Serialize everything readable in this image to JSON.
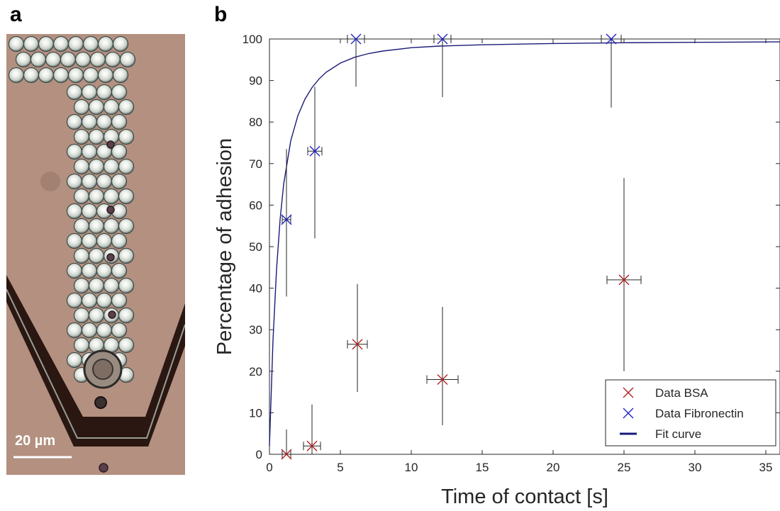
{
  "panels": {
    "a_label": "a",
    "b_label": "b"
  },
  "micrograph": {
    "scale_bar_label": "20 µm",
    "colors": {
      "background": "#b39080",
      "channel": "#2a1712",
      "bead": "#d9ded8"
    }
  },
  "chart_data": {
    "type": "scatter",
    "title": "",
    "xlabel": "Time of contact [s]",
    "ylabel": "Percentage of adhesion",
    "xlim": [
      0,
      36
    ],
    "ylim": [
      0,
      100
    ],
    "xticks": [
      0,
      5,
      10,
      15,
      20,
      25,
      30,
      35
    ],
    "yticks": [
      0,
      10,
      20,
      30,
      40,
      50,
      60,
      70,
      80,
      90,
      100
    ],
    "grid": false,
    "legend_position": "bottom-right",
    "series": [
      {
        "name": "Data BSA",
        "marker": "x",
        "color": "#b22222",
        "points": [
          {
            "x": 1.2,
            "y": 0,
            "xerr": 0.3,
            "yerr_low": 0,
            "yerr_high": 6
          },
          {
            "x": 3.0,
            "y": 2,
            "xerr": 0.6,
            "yerr_low": 2,
            "yerr_high": 10
          },
          {
            "x": 6.2,
            "y": 26.5,
            "xerr": 0.7,
            "yerr_low": 11.5,
            "yerr_high": 14.5
          },
          {
            "x": 12.2,
            "y": 18,
            "xerr": 1.1,
            "yerr_low": 11,
            "yerr_high": 17.5
          },
          {
            "x": 25.0,
            "y": 42,
            "xerr": 1.2,
            "yerr_low": 22,
            "yerr_high": 24.5
          }
        ]
      },
      {
        "name": "Data Fibronectin",
        "marker": "x",
        "color": "#2323c8",
        "points": [
          {
            "x": 1.2,
            "y": 56.5,
            "xerr": 0.3,
            "yerr_low": 18.5,
            "yerr_high": 17
          },
          {
            "x": 3.2,
            "y": 73,
            "xerr": 0.5,
            "yerr_low": 21,
            "yerr_high": 15.5
          },
          {
            "x": 6.1,
            "y": 100,
            "xerr": 0.6,
            "yerr_low": 11.5,
            "yerr_high": 0
          },
          {
            "x": 12.2,
            "y": 100,
            "xerr": 0.6,
            "yerr_low": 14,
            "yerr_high": 0
          },
          {
            "x": 24.1,
            "y": 100,
            "xerr": 0.7,
            "yerr_low": 16.5,
            "yerr_high": 0
          }
        ]
      },
      {
        "name": "Fit curve",
        "type": "line",
        "color": "#1a1a7a",
        "x": [
          0,
          0.25,
          0.5,
          0.75,
          1,
          1.5,
          2,
          2.5,
          3,
          3.5,
          4,
          5,
          6,
          7,
          8,
          10,
          12,
          15,
          20,
          25,
          30,
          36
        ],
        "y": [
          2,
          27.5,
          44.5,
          56.5,
          65,
          75.5,
          81.5,
          85.5,
          88.3,
          90.4,
          92,
          94.2,
          95.6,
          96.5,
          97.1,
          97.9,
          98.3,
          98.6,
          98.9,
          99.1,
          99.2,
          99.3
        ]
      }
    ]
  }
}
